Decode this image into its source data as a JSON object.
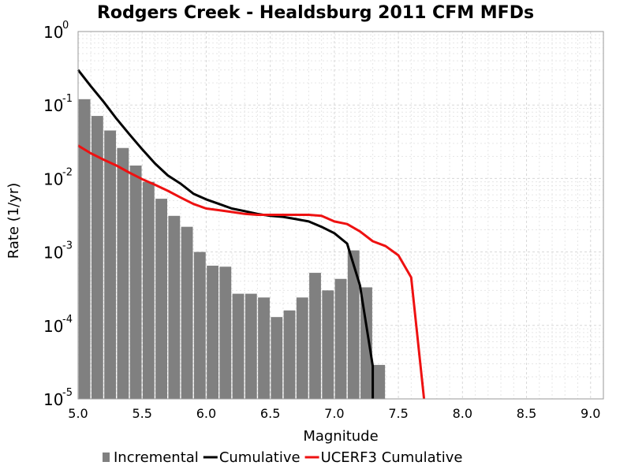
{
  "chart_data": {
    "type": "bar",
    "title": "Rodgers Creek - Healdsburg 2011 CFM MFDs",
    "xlabel": "Magnitude",
    "ylabel": "Rate (1/yr)",
    "xlim": [
      5.0,
      9.1
    ],
    "ylim": [
      1e-05,
      1
    ],
    "yscale": "log",
    "grid": true,
    "legend_position": "bottom",
    "x_ticks": [
      "5.0",
      "5.5",
      "6.0",
      "6.5",
      "7.0",
      "7.5",
      "8.0",
      "8.5",
      "9.0"
    ],
    "y_ticks": [
      {
        "base": "10",
        "exp": "0"
      },
      {
        "base": "10",
        "exp": "-1"
      },
      {
        "base": "10",
        "exp": "-2"
      },
      {
        "base": "10",
        "exp": "-3"
      },
      {
        "base": "10",
        "exp": "-4"
      },
      {
        "base": "10",
        "exp": "-5"
      }
    ],
    "series": [
      {
        "name": "Incremental",
        "type": "bar",
        "color": "#808080",
        "x": [
          5.05,
          5.15,
          5.25,
          5.35,
          5.45,
          5.55,
          5.65,
          5.75,
          5.85,
          5.95,
          6.05,
          6.15,
          6.25,
          6.35,
          6.45,
          6.55,
          6.65,
          6.75,
          6.85,
          6.95,
          7.05,
          7.15,
          7.25,
          7.35
        ],
        "values": [
          0.12,
          0.071,
          0.045,
          0.026,
          0.015,
          0.009,
          0.0053,
          0.0031,
          0.0022,
          0.001,
          0.00065,
          0.00063,
          0.00027,
          0.00027,
          0.00024,
          0.00013,
          0.00016,
          0.00024,
          0.00052,
          0.0003,
          0.00043,
          0.00105,
          0.00033,
          2.9e-05
        ]
      },
      {
        "name": "Cumulative",
        "type": "line",
        "color": "#000000",
        "x": [
          5.0,
          5.1,
          5.2,
          5.3,
          5.4,
          5.5,
          5.6,
          5.7,
          5.8,
          5.9,
          6.0,
          6.1,
          6.2,
          6.3,
          6.4,
          6.5,
          6.6,
          6.7,
          6.8,
          6.9,
          7.0,
          7.1,
          7.2,
          7.3,
          7.3
        ],
        "values": [
          0.3,
          0.18,
          0.11,
          0.065,
          0.04,
          0.025,
          0.016,
          0.011,
          0.0085,
          0.0062,
          0.0052,
          0.0045,
          0.0039,
          0.0036,
          0.0033,
          0.0031,
          0.003,
          0.0028,
          0.0026,
          0.0022,
          0.0018,
          0.0013,
          0.00035,
          2.8e-05,
          1e-05
        ]
      },
      {
        "name": "UCERF3 Cumulative",
        "type": "line",
        "color": "#ee1111",
        "x": [
          5.0,
          5.1,
          5.2,
          5.3,
          5.4,
          5.5,
          5.6,
          5.7,
          5.8,
          5.9,
          6.0,
          6.1,
          6.2,
          6.3,
          6.4,
          6.5,
          6.6,
          6.7,
          6.8,
          6.9,
          7.0,
          7.1,
          7.2,
          7.3,
          7.4,
          7.5,
          7.6,
          7.7
        ],
        "values": [
          0.028,
          0.022,
          0.018,
          0.015,
          0.012,
          0.0098,
          0.0082,
          0.0068,
          0.0055,
          0.0045,
          0.0039,
          0.0037,
          0.0035,
          0.0033,
          0.0032,
          0.0032,
          0.0032,
          0.0032,
          0.0032,
          0.0031,
          0.0026,
          0.0024,
          0.0019,
          0.0014,
          0.0012,
          0.0009,
          0.00045,
          1e-05
        ]
      }
    ]
  }
}
